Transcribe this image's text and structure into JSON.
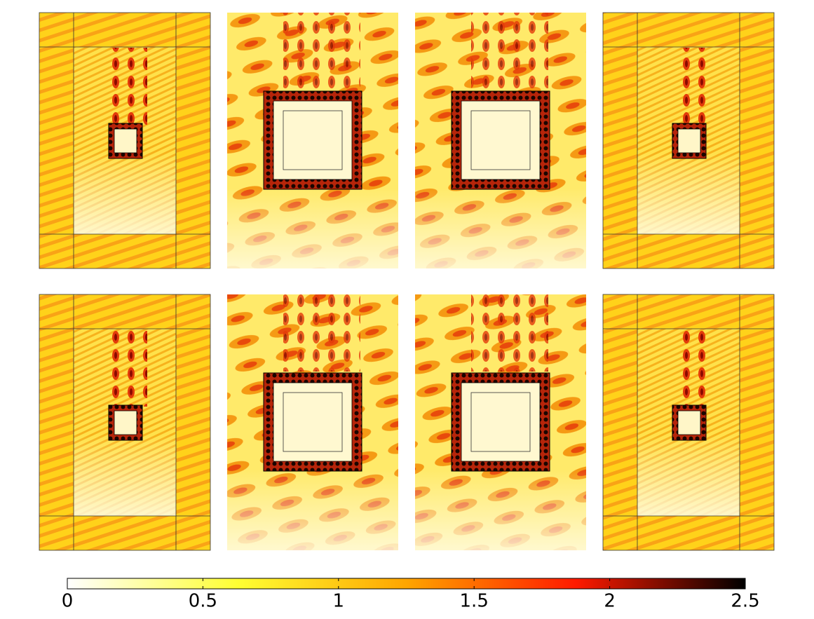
{
  "colorbar": {
    "range": [
      0,
      2.5
    ],
    "ticks": [
      0,
      0.5,
      1,
      1.5,
      2,
      2.5
    ],
    "colors": [
      "#ffffff",
      "#ffff33",
      "#ffa500",
      "#ff1a00",
      "#000000"
    ]
  }
}
